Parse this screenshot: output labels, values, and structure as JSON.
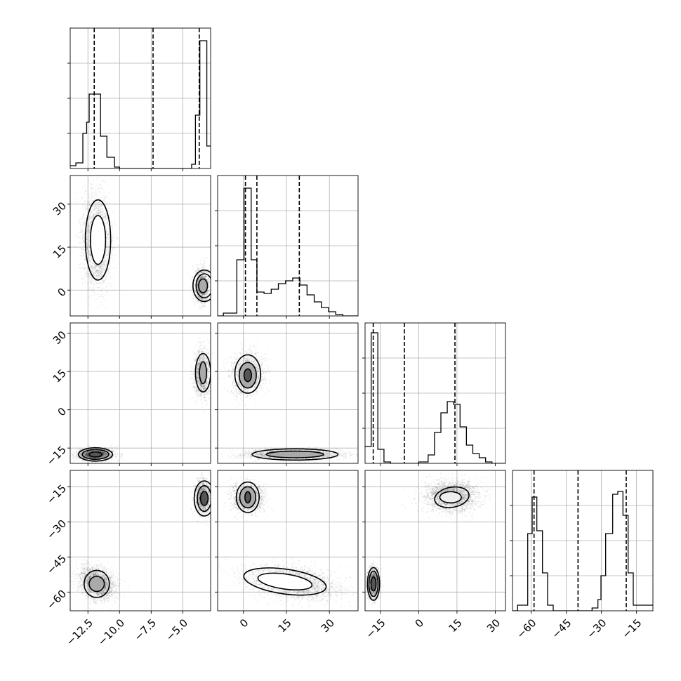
{
  "chart_data": {
    "type": "corner",
    "variables": [
      {
        "range": [
          -13.9,
          -2.8
        ],
        "ticks": [
          -12.5,
          -10.0,
          -7.5,
          -5.0
        ],
        "tick_labels": [
          "−12.5",
          "−10.0",
          "−7.5",
          "−5.0"
        ],
        "quantiles": [
          -12.0,
          -7.35,
          -3.7
        ],
        "hist_bins": [
          [
            -13.9,
            -13.45,
            0.02
          ],
          [
            -13.45,
            -12.9,
            0.04
          ],
          [
            -12.9,
            -12.6,
            0.25
          ],
          [
            -12.6,
            -12.4,
            0.33
          ],
          [
            -12.4,
            -12.2,
            0.53
          ],
          [
            -12.2,
            -11.8,
            0.53
          ],
          [
            -11.8,
            -11.5,
            0.53
          ],
          [
            -11.5,
            -11.0,
            0.23
          ],
          [
            -11.0,
            -10.4,
            0.08
          ],
          [
            -10.4,
            -10.0,
            0.01
          ],
          [
            -10.0,
            -4.3,
            0.0
          ],
          [
            -4.3,
            -4.0,
            0.03
          ],
          [
            -4.0,
            -3.65,
            0.38
          ],
          [
            -3.65,
            -3.5,
            0.91
          ],
          [
            -3.5,
            -3.1,
            0.91
          ],
          [
            -3.1,
            -2.8,
            0.16
          ]
        ]
      },
      {
        "range": [
          -9,
          40
        ],
        "ticks": [
          0,
          15,
          30
        ],
        "tick_labels": [
          "0",
          "15",
          "30"
        ],
        "quantiles": [
          0.7,
          4.7,
          19.5
        ],
        "hist_bins": [
          [
            -9,
            -7,
            0.0
          ],
          [
            -7,
            -2.3,
            0.02
          ],
          [
            -2.3,
            0.2,
            0.4
          ],
          [
            0.2,
            2.7,
            0.91
          ],
          [
            2.7,
            4.7,
            0.4
          ],
          [
            4.7,
            7.2,
            0.17
          ],
          [
            7.2,
            9.7,
            0.16
          ],
          [
            9.7,
            12.2,
            0.19
          ],
          [
            12.2,
            14.7,
            0.23
          ],
          [
            14.7,
            17.2,
            0.25
          ],
          [
            17.2,
            19.7,
            0.27
          ],
          [
            19.7,
            22.2,
            0.22
          ],
          [
            22.2,
            24.7,
            0.15
          ],
          [
            24.7,
            27.2,
            0.1
          ],
          [
            27.2,
            29.7,
            0.06
          ],
          [
            29.7,
            32.2,
            0.03
          ],
          [
            32.2,
            34.7,
            0.01
          ],
          [
            34.7,
            40,
            0.0
          ]
        ]
      },
      {
        "range": [
          -21,
          34
        ],
        "ticks": [
          -15,
          0,
          15,
          30
        ],
        "tick_labels": [
          "−15",
          "0",
          "15",
          "30"
        ],
        "quantiles": [
          -17.8,
          -5.6,
          14.2
        ],
        "hist_bins": [
          [
            -21,
            -19.5,
            0.12
          ],
          [
            -19.5,
            -18.6,
            0.12
          ],
          [
            -18.6,
            -16.0,
            0.93
          ],
          [
            -16.0,
            -13.6,
            0.1
          ],
          [
            -13.6,
            -11,
            0.01
          ],
          [
            -11,
            0,
            0.0
          ],
          [
            0,
            3.7,
            0.01
          ],
          [
            3.7,
            6.2,
            0.06
          ],
          [
            6.2,
            8.7,
            0.22
          ],
          [
            8.7,
            11.2,
            0.36
          ],
          [
            11.2,
            13.7,
            0.44
          ],
          [
            13.7,
            16.2,
            0.42
          ],
          [
            16.2,
            18.7,
            0.26
          ],
          [
            18.7,
            21.2,
            0.13
          ],
          [
            21.2,
            23.7,
            0.07
          ],
          [
            23.7,
            26.2,
            0.04
          ],
          [
            26.2,
            28.7,
            0.01
          ],
          [
            28.7,
            34,
            0.0
          ]
        ]
      },
      {
        "range": [
          -68,
          -8
        ],
        "ticks": [
          -60,
          -45,
          -30,
          -15
        ],
        "tick_labels": [
          "−60",
          "−45",
          "−30",
          "−15"
        ],
        "quantiles": [
          -58.8,
          -40.0,
          -19.4
        ],
        "hist_bins": [
          [
            -68,
            -65.8,
            0.0
          ],
          [
            -65.8,
            -61.5,
            0.04
          ],
          [
            -61.5,
            -59.6,
            0.55
          ],
          [
            -59.6,
            -57.6,
            0.81
          ],
          [
            -57.6,
            -55.2,
            0.57
          ],
          [
            -55.2,
            -53.0,
            0.27
          ],
          [
            -53.0,
            -50.6,
            0.04
          ],
          [
            -50.6,
            -34,
            0.0
          ],
          [
            -34,
            -31.5,
            0.02
          ],
          [
            -31.5,
            -30.2,
            0.08
          ],
          [
            -30.2,
            -28.2,
            0.25
          ],
          [
            -28.2,
            -25.2,
            0.55
          ],
          [
            -25.2,
            -23.0,
            0.83
          ],
          [
            -23.0,
            -20.8,
            0.85
          ],
          [
            -20.8,
            -18.6,
            0.68
          ],
          [
            -18.6,
            -16.4,
            0.27
          ],
          [
            -16.4,
            -8,
            0.04
          ]
        ]
      }
    ],
    "panel_layout": {
      "size": 200,
      "gap": 10,
      "left": 100,
      "top": 40
    },
    "ylim_hist": [
      0,
      1.0
    ],
    "hist_ticks": [
      0.25,
      0.5,
      0.75
    ],
    "pairs": [
      {
        "row": 1,
        "col": 0,
        "clusters": [
          {
            "cx": -11.8,
            "cy": 17,
            "sx": 0.55,
            "sy": 8,
            "n": 2600,
            "rot": 0
          },
          {
            "cx": -3.5,
            "cy": 1.5,
            "sx": 0.28,
            "sy": 2.8,
            "n": 1700,
            "rot": 0
          }
        ],
        "contours": [
          {
            "cx": -11.7,
            "cy": 17.5,
            "rx": 0.6,
            "ry": 8.5,
            "rot": 0,
            "fill": "#ffffff"
          },
          {
            "cx": -11.7,
            "cy": 17.5,
            "rx": 1.0,
            "ry": 14.0,
            "rot": 0,
            "fill": "none"
          },
          {
            "cx": -3.4,
            "cy": 1.5,
            "rx": 0.35,
            "ry": 2.4,
            "rot": 0,
            "fill": "#aaaaaa"
          },
          {
            "cx": -3.3,
            "cy": 1.5,
            "rx": 0.65,
            "ry": 4.2,
            "rot": 0,
            "fill": "none"
          },
          {
            "cx": -3.3,
            "cy": 1.5,
            "rx": 0.9,
            "ry": 5.5,
            "rot": 0,
            "fill": "none"
          }
        ]
      },
      {
        "row": 2,
        "col": 0,
        "clusters": [
          {
            "cx": -3.5,
            "cy": 14,
            "sx": 0.28,
            "sy": 4.5,
            "n": 1700,
            "rot": 0
          },
          {
            "cx": -11.9,
            "cy": -17.5,
            "sx": 0.65,
            "sy": 1.1,
            "n": 2600,
            "rot": 0
          }
        ],
        "contours": [
          {
            "cx": -3.4,
            "cy": 14.5,
            "rx": 0.28,
            "ry": 4.3,
            "rot": 0,
            "fill": "#aaaaaa"
          },
          {
            "cx": -3.4,
            "cy": 14.5,
            "rx": 0.6,
            "ry": 7.5,
            "rot": 0,
            "fill": "none"
          },
          {
            "cx": -11.9,
            "cy": -17.5,
            "rx": 0.5,
            "ry": 1.0,
            "rot": 0,
            "fill": "#555555"
          },
          {
            "cx": -11.9,
            "cy": -17.5,
            "rx": 1.05,
            "ry": 1.9,
            "rot": 0,
            "fill": "none"
          },
          {
            "cx": -11.9,
            "cy": -17.5,
            "rx": 1.35,
            "ry": 2.6,
            "rot": 0,
            "fill": "none"
          }
        ]
      },
      {
        "row": 3,
        "col": 0,
        "clusters": [
          {
            "cx": -3.4,
            "cy": -19.5,
            "sx": 0.3,
            "sy": 3.5,
            "n": 1700,
            "rot": 0
          },
          {
            "cx": -11.8,
            "cy": -56,
            "sx": 0.55,
            "sy": 4.0,
            "n": 2600,
            "rot": -55
          }
        ],
        "contours": [
          {
            "cx": -3.3,
            "cy": -20,
            "rx": 0.3,
            "ry": 3.0,
            "rot": 0,
            "fill": "#555555"
          },
          {
            "cx": -3.3,
            "cy": -20,
            "rx": 0.55,
            "ry": 5.5,
            "rot": 0,
            "fill": "none"
          },
          {
            "cx": -3.3,
            "cy": -20,
            "rx": 0.8,
            "ry": 7.5,
            "rot": 0,
            "fill": "none"
          },
          {
            "cx": -11.8,
            "cy": -56.5,
            "rx": 0.6,
            "ry": 3.2,
            "rot": 0,
            "fill": "#aaaaaa"
          },
          {
            "cx": -11.8,
            "cy": -56.5,
            "rx": 1.0,
            "ry": 5.8,
            "rot": 0,
            "fill": "none"
          }
        ]
      },
      {
        "row": 2,
        "col": 1,
        "clusters": [
          {
            "cx": 1.5,
            "cy": 14,
            "sx": 2.8,
            "sy": 4.0,
            "n": 1700,
            "rot": 0
          },
          {
            "cx": 17,
            "cy": -17.5,
            "sx": 8,
            "sy": 1.0,
            "n": 2600,
            "rot": 0
          }
        ],
        "contours": [
          {
            "cx": 1.5,
            "cy": 13.5,
            "rx": 1.3,
            "ry": 2.5,
            "rot": 0,
            "fill": "#555555"
          },
          {
            "cx": 1.5,
            "cy": 13.5,
            "rx": 3.0,
            "ry": 5.0,
            "rot": 0,
            "fill": "#aaaaaa"
          },
          {
            "cx": 1.5,
            "cy": 14,
            "rx": 4.5,
            "ry": 7.5,
            "rot": 0,
            "fill": "none"
          },
          {
            "cx": 18,
            "cy": -17.5,
            "rx": 10,
            "ry": 1.3,
            "rot": 0,
            "fill": "#aaaaaa"
          },
          {
            "cx": 18,
            "cy": -17.5,
            "rx": 15,
            "ry": 2.2,
            "rot": 0,
            "fill": "none"
          }
        ]
      },
      {
        "row": 3,
        "col": 1,
        "clusters": [
          {
            "cx": 1.5,
            "cy": -19.5,
            "sx": 2.7,
            "sy": 3.2,
            "n": 1700,
            "rot": 0
          },
          {
            "cx": 17,
            "cy": -56,
            "sx": 8,
            "sy": 3.3,
            "n": 2600,
            "rot": 8
          }
        ],
        "contours": [
          {
            "cx": 1.5,
            "cy": -19.5,
            "rx": 1.0,
            "ry": 2.4,
            "rot": 0,
            "fill": "#555555"
          },
          {
            "cx": 1.5,
            "cy": -19.5,
            "rx": 2.8,
            "ry": 4.5,
            "rot": 0,
            "fill": "#aaaaaa"
          },
          {
            "cx": 1.5,
            "cy": -19.5,
            "rx": 4.0,
            "ry": 6.5,
            "rot": 0,
            "fill": "none"
          },
          {
            "cx": 14.5,
            "cy": -55.5,
            "rx": 9.5,
            "ry": 3.2,
            "rot": 8,
            "fill": "#ffffff"
          },
          {
            "cx": 14.5,
            "cy": -55.5,
            "rx": 14.5,
            "ry": 5.3,
            "rot": 8,
            "fill": "none"
          }
        ]
      },
      {
        "row": 3,
        "col": 2,
        "clusters": [
          {
            "cx": 13,
            "cy": -19,
            "sx": 5.0,
            "sy": 3.2,
            "n": 2600,
            "rot": 0
          },
          {
            "cx": -17.7,
            "cy": -56,
            "sx": 1.1,
            "sy": 3.3,
            "n": 1700,
            "rot": 0
          }
        ],
        "contours": [
          {
            "cx": 12.5,
            "cy": -19.5,
            "rx": 4.2,
            "ry": 2.4,
            "rot": 0,
            "fill": "#eeeeee"
          },
          {
            "cx": 13,
            "cy": -19.5,
            "rx": 6.8,
            "ry": 4.3,
            "rot": -10,
            "fill": "none"
          },
          {
            "cx": -17.7,
            "cy": -56.5,
            "rx": 1.0,
            "ry": 3.0,
            "rot": 0,
            "fill": "#555555"
          },
          {
            "cx": -17.7,
            "cy": -56.5,
            "rx": 1.8,
            "ry": 5.4,
            "rot": 0,
            "fill": "none"
          },
          {
            "cx": -17.7,
            "cy": -56.5,
            "rx": 2.4,
            "ry": 7.0,
            "rot": 0,
            "fill": "none"
          }
        ]
      }
    ]
  }
}
